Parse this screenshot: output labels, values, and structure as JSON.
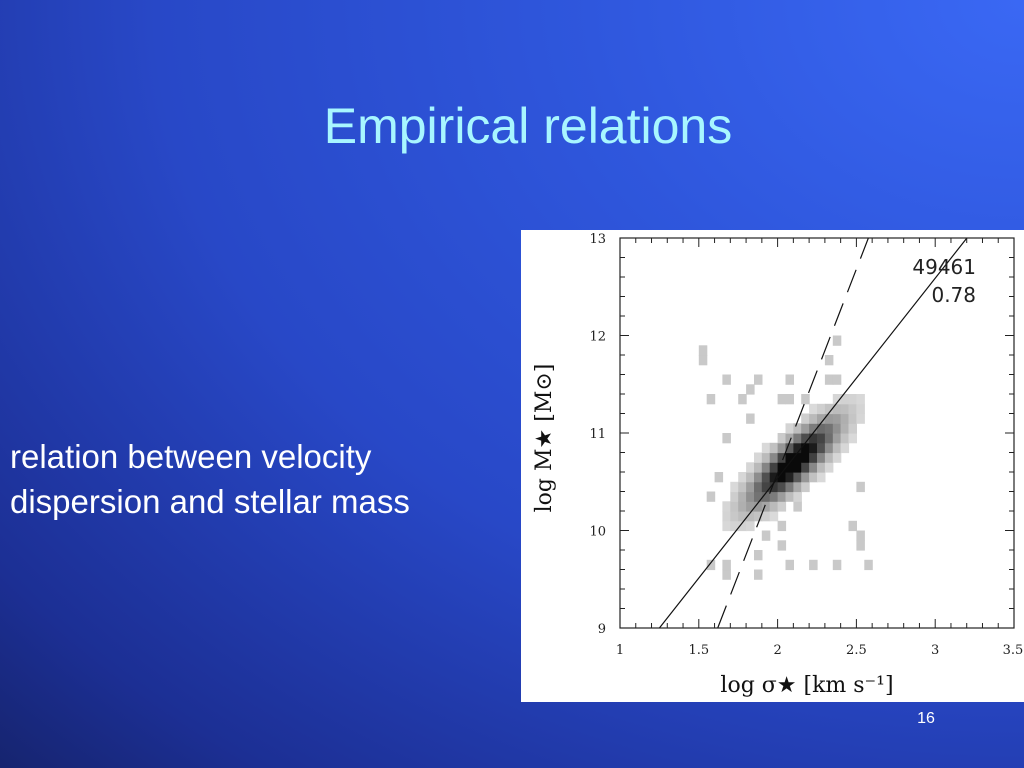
{
  "slide": {
    "title": "Empirical relations",
    "body": "relation between velocity dispersion and stellar mass",
    "page_number": "16"
  },
  "chart_data": {
    "type": "heatmap",
    "x_range": [
      1,
      3.5
    ],
    "y_range": [
      9,
      13
    ],
    "x_ticks": [
      "1",
      "1.5",
      "2",
      "2.5",
      "3",
      "3.5"
    ],
    "y_ticks": [
      "9",
      "10",
      "11",
      "12",
      "13"
    ],
    "xlabel": "log σ★ [km s⁻¹]",
    "ylabel": "log M★ [M⊙]",
    "annotations": [
      "49461",
      "0.78"
    ],
    "density_peak": {
      "x": 2.1,
      "y": 10.7
    },
    "density_extent": {
      "x": [
        1.5,
        2.55
      ],
      "y": [
        9.5,
        11.95
      ]
    },
    "density_orientation_slope": 1.7,
    "fit_line_solid": {
      "points": [
        [
          1.25,
          9
        ],
        [
          3.25,
          13.1
        ]
      ]
    },
    "fit_line_dashed": {
      "points": [
        [
          1.62,
          9
        ],
        [
          2.6,
          13.1
        ]
      ]
    },
    "grid": false,
    "legend": "none"
  }
}
